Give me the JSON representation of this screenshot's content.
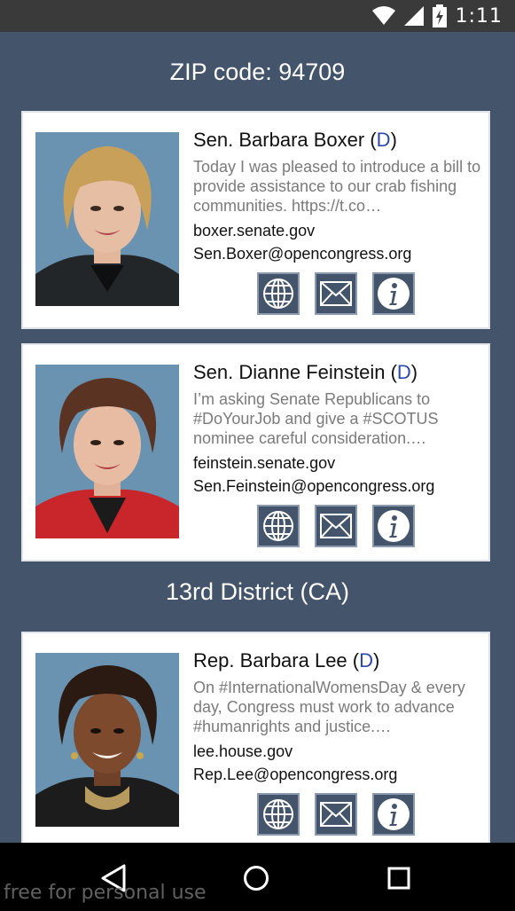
{
  "status_bar": {
    "time": "1:11"
  },
  "section_state": {
    "label": "ZIP code: 94709"
  },
  "section_district": {
    "label": "13rd District (CA)"
  },
  "cards": [
    {
      "prefix": "Sen. Barbara Boxer (",
      "party": "D",
      "suffix": ")",
      "tweet": "Today I was pleased to introduce a bill to provide assistance to our crab fishing communities. https://t.co…",
      "website": "boxer.senate.gov",
      "email": "Sen.Boxer@opencongress.org"
    },
    {
      "prefix": "Sen. Dianne Feinstein (",
      "party": "D",
      "suffix": ")",
      "tweet": "I’m asking Senate Republicans to #DoYourJob and give a #SCOTUS nominee careful consideration.…",
      "website": "feinstein.senate.gov",
      "email": "Sen.Feinstein@opencongress.org"
    },
    {
      "prefix": "Rep. Barbara Lee (",
      "party": "D",
      "suffix": ")",
      "tweet": "On #InternationalWomensDay & every day, Congress must work to advance #humanrights and justice.…",
      "website": "lee.house.gov",
      "email": "Rep.Lee@opencongress.org"
    }
  ],
  "watermark": "free for personal use",
  "colors": {
    "background": "#44546b",
    "party_dem": "#2a4aa6",
    "button_bg": "#44546b"
  },
  "icons": [
    "wifi-icon",
    "signal-icon",
    "battery-icon",
    "globe-icon",
    "mail-icon",
    "info-icon",
    "back-icon",
    "home-icon",
    "recents-icon"
  ]
}
